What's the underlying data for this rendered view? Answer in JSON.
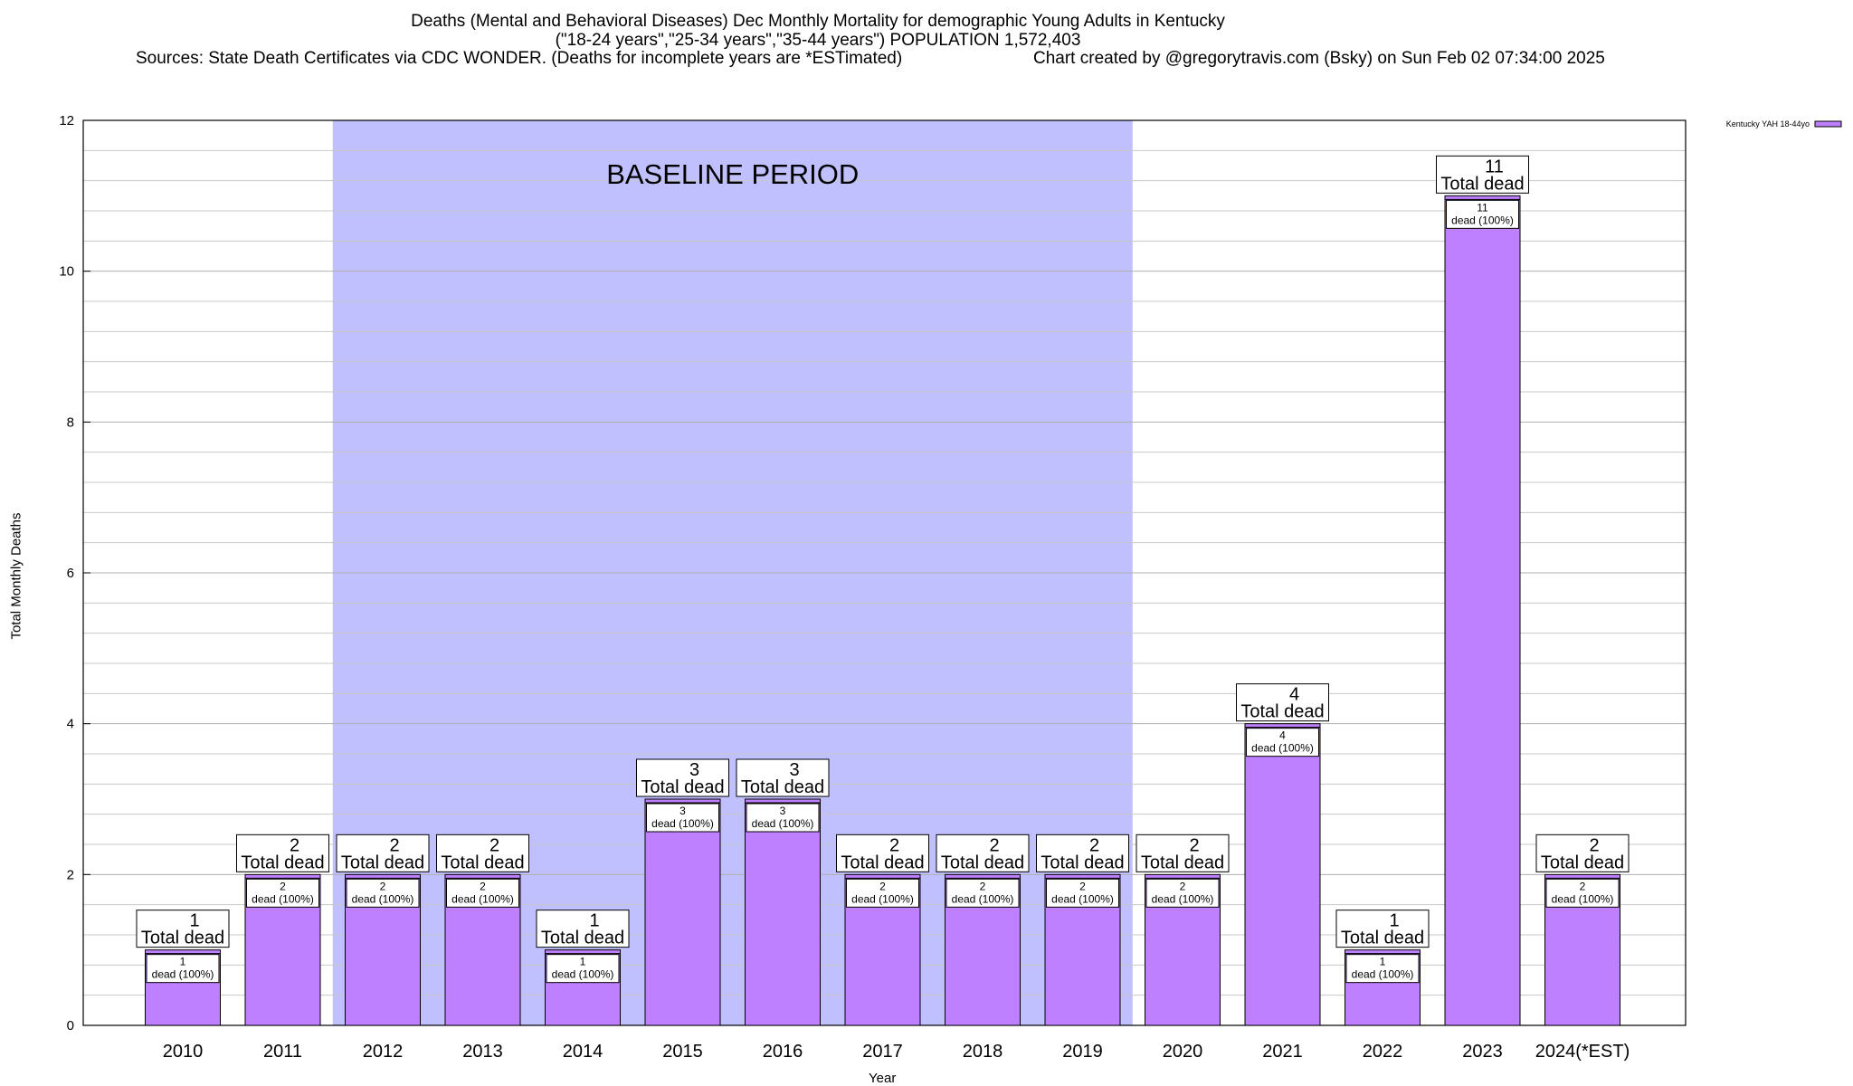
{
  "header": {
    "title_line1": "Deaths (Mental and Behavioral Diseases) Dec Monthly Mortality for demographic Young Adults in Kentucky",
    "title_line2": "(\"18-24 years\",\"25-34 years\",\"35-44 years\") POPULATION 1,572,403",
    "sources": "Sources: State Death Certificates via CDC WONDER. (Deaths for incomplete years are *ESTimated)",
    "credit": "Chart created by @gregorytravis.com (Bsky) on Sun Feb 02 07:34:00 2025"
  },
  "chart_data": {
    "type": "bar",
    "title": "Deaths (Mental and Behavioral Diseases) Dec Monthly Mortality for demographic Young Adults in Kentucky",
    "xlabel": "Year",
    "ylabel": "Total Monthly Deaths",
    "ylim": [
      0,
      12
    ],
    "yticks": [
      0,
      2,
      4,
      6,
      8,
      10,
      12
    ],
    "grid": true,
    "legend_position": "top-right",
    "categories": [
      "2010",
      "2011",
      "2012",
      "2013",
      "2014",
      "2015",
      "2016",
      "2017",
      "2018",
      "2019",
      "2020",
      "2021",
      "2022",
      "2023",
      "2024(*EST)"
    ],
    "series": [
      {
        "name": "Kentucky YAH 18-44yo",
        "color": "#bf80ff",
        "values": [
          1,
          2,
          2,
          2,
          1,
          3,
          3,
          2,
          2,
          2,
          2,
          4,
          1,
          11,
          2
        ]
      }
    ],
    "total_label_text": "Total dead",
    "inner_label_text": "dead (100%)",
    "baseline": {
      "label": "BASELINE PERIOD",
      "from": "2012",
      "to": "2019",
      "color": "#c0c0ff"
    }
  }
}
